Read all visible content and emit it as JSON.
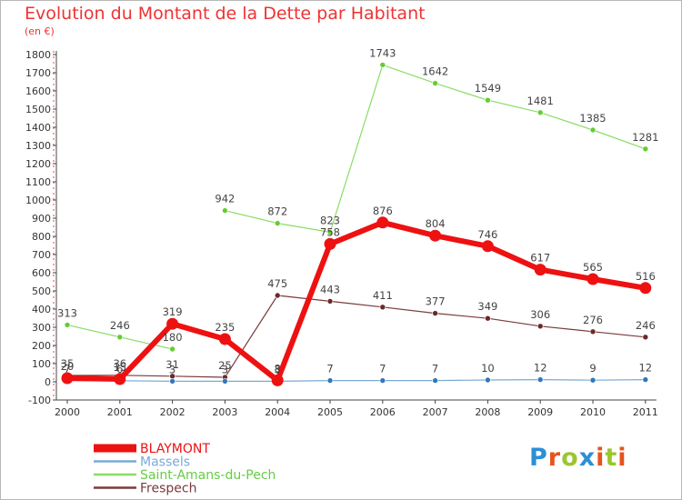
{
  "header": {
    "title": "Evolution du Montant de la Dette par Habitant",
    "subtitle": "(en €)"
  },
  "logo": {
    "letters": [
      "P",
      "r",
      "o",
      "x",
      "i",
      "t",
      "i"
    ],
    "colors": [
      "#2c8fd6",
      "#e6541e",
      "#9bc62f",
      "#2c8fd6",
      "#e6541e",
      "#9bc62f",
      "#e6541e"
    ]
  },
  "chart_data": {
    "type": "line",
    "title": "Evolution du Montant de la Dette par Habitant",
    "ylabel": "(en €)",
    "xlabel": "",
    "categories": [
      "2000",
      "2001",
      "2002",
      "2003",
      "2004",
      "2005",
      "2006",
      "2007",
      "2008",
      "2009",
      "2010",
      "2011"
    ],
    "ylim": [
      -100,
      1800
    ],
    "yticks": [
      -100,
      0,
      100,
      200,
      300,
      400,
      500,
      600,
      700,
      800,
      900,
      1000,
      1100,
      1200,
      1300,
      1400,
      1500,
      1600,
      1700,
      1800
    ],
    "grid": false,
    "legend_position": "bottom-left",
    "series": [
      {
        "name": "Saint-Amans-du-Pech",
        "color": "#88dd66",
        "marker_color": "#66cc33",
        "line_width": 1.2,
        "segments": [
          {
            "start": 0,
            "values": [
              313,
              246,
              180
            ]
          },
          {
            "start": 3,
            "values": [
              942,
              872,
              823,
              1743,
              1642,
              1549,
              1481,
              1385,
              1281
            ]
          }
        ],
        "labels": [
          "313",
          "246",
          "180",
          "942",
          "872",
          "823",
          "1743",
          "1642",
          "1549",
          "1481",
          "1385",
          "1281"
        ]
      },
      {
        "name": "Frespech",
        "color": "#7a3a3a",
        "marker_color": "#6a2a2a",
        "line_width": 1.2,
        "segments": [
          {
            "start": 0,
            "values": [
              35,
              36,
              31,
              25,
              475,
              443,
              411,
              377,
              349,
              306,
              276,
              246
            ]
          }
        ],
        "labels": [
          "35",
          "36",
          "31",
          "25",
          "475",
          "443",
          "411",
          "377",
          "349",
          "306",
          "276",
          "246"
        ]
      },
      {
        "name": "Massels",
        "color": "#7aaad6",
        "marker_color": "#3377bb",
        "line_width": 1.2,
        "segments": [
          {
            "start": 0,
            "values": [
              7,
              6,
              3,
              3,
              3,
              7,
              7,
              7,
              10,
              12,
              9,
              12
            ]
          }
        ],
        "labels": [
          "7",
          "6",
          "3",
          "3",
          "3",
          "7",
          "7",
          "7",
          "10",
          "12",
          "9",
          "12"
        ]
      },
      {
        "name": "BLAYMONT",
        "color": "#ee1111",
        "marker_color": "#ee1111",
        "line_width": 6,
        "segments": [
          {
            "start": 0,
            "values": [
              20,
              15,
              319,
              235,
              8,
              758,
              876,
              804,
              746,
              617,
              565,
              516
            ]
          }
        ],
        "labels": [
          "20",
          "15",
          "319",
          "235",
          "8",
          "758",
          "876",
          "804",
          "746",
          "617",
          "565",
          "516"
        ]
      }
    ]
  }
}
